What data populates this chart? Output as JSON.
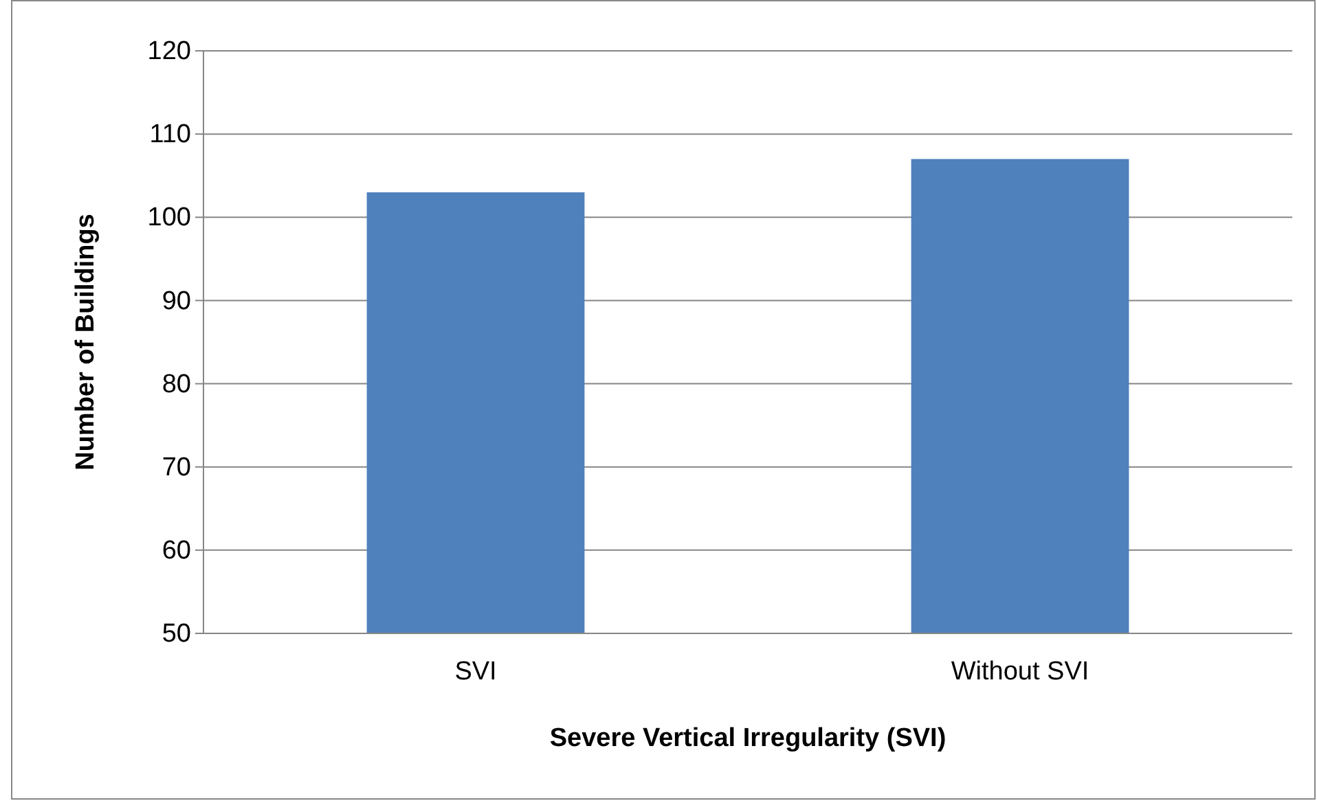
{
  "chart_data": {
    "type": "bar",
    "xlabel": "Severe Vertical Irregularity (SVI)",
    "ylabel": "Number of Buildings",
    "categories": [
      "SVI",
      "Without SVI"
    ],
    "values": [
      103,
      107
    ],
    "color": "#4f81bd",
    "ylim": [
      50,
      120
    ],
    "yticks": [
      50,
      60,
      70,
      80,
      90,
      100,
      110,
      120
    ],
    "grid": "y"
  }
}
